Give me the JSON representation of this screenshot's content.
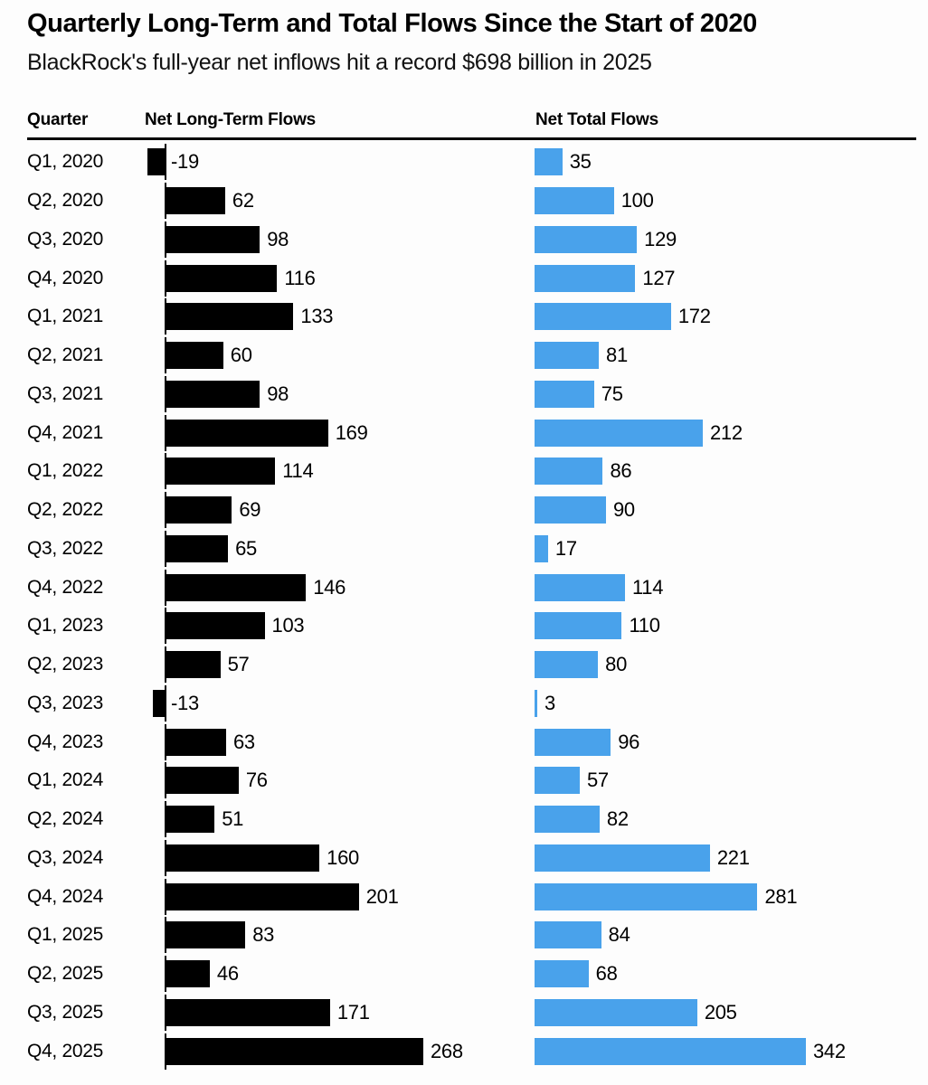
{
  "header": {
    "title": "Quarterly Long-Term and Total Flows Since the Start of 2020",
    "subtitle": "BlackRock's full-year net inflows hit a record $698 billion in 2025"
  },
  "table": {
    "columns": [
      "Quarter",
      "Net Long-Term Flows",
      "Net Total Flows"
    ]
  },
  "colors": {
    "long_term_bar": "#000000",
    "total_bar": "#49A2EB",
    "rule": "#000000"
  },
  "chart_data": {
    "type": "bar",
    "orientation": "horizontal",
    "title": "Quarterly Long-Term and Total Flows Since the Start of 2020",
    "subtitle": "BlackRock's full-year net inflows hit a record $698 billion in 2025",
    "categories": [
      "Q1, 2020",
      "Q2, 2020",
      "Q3, 2020",
      "Q4, 2020",
      "Q1, 2021",
      "Q2, 2021",
      "Q3, 2021",
      "Q4, 2021",
      "Q1, 2022",
      "Q2, 2022",
      "Q3, 2022",
      "Q4, 2022",
      "Q1, 2023",
      "Q2, 2023",
      "Q3, 2023",
      "Q4, 2023",
      "Q1, 2024",
      "Q2, 2024",
      "Q3, 2024",
      "Q4, 2024",
      "Q1, 2025",
      "Q2, 2025",
      "Q3, 2025",
      "Q4, 2025"
    ],
    "series": [
      {
        "name": "Net Long-Term Flows",
        "color": "#000000",
        "values": [
          -19,
          62,
          98,
          116,
          133,
          60,
          98,
          169,
          114,
          69,
          65,
          146,
          103,
          57,
          -13,
          63,
          76,
          51,
          160,
          201,
          83,
          46,
          171,
          268
        ]
      },
      {
        "name": "Net Total Flows",
        "color": "#49A2EB",
        "values": [
          35,
          100,
          129,
          127,
          172,
          81,
          75,
          212,
          86,
          90,
          17,
          114,
          110,
          80,
          3,
          96,
          57,
          82,
          221,
          281,
          84,
          68,
          205,
          342
        ]
      }
    ],
    "value_labels_shown": true,
    "grid": false,
    "legend_position": "column-headers"
  }
}
